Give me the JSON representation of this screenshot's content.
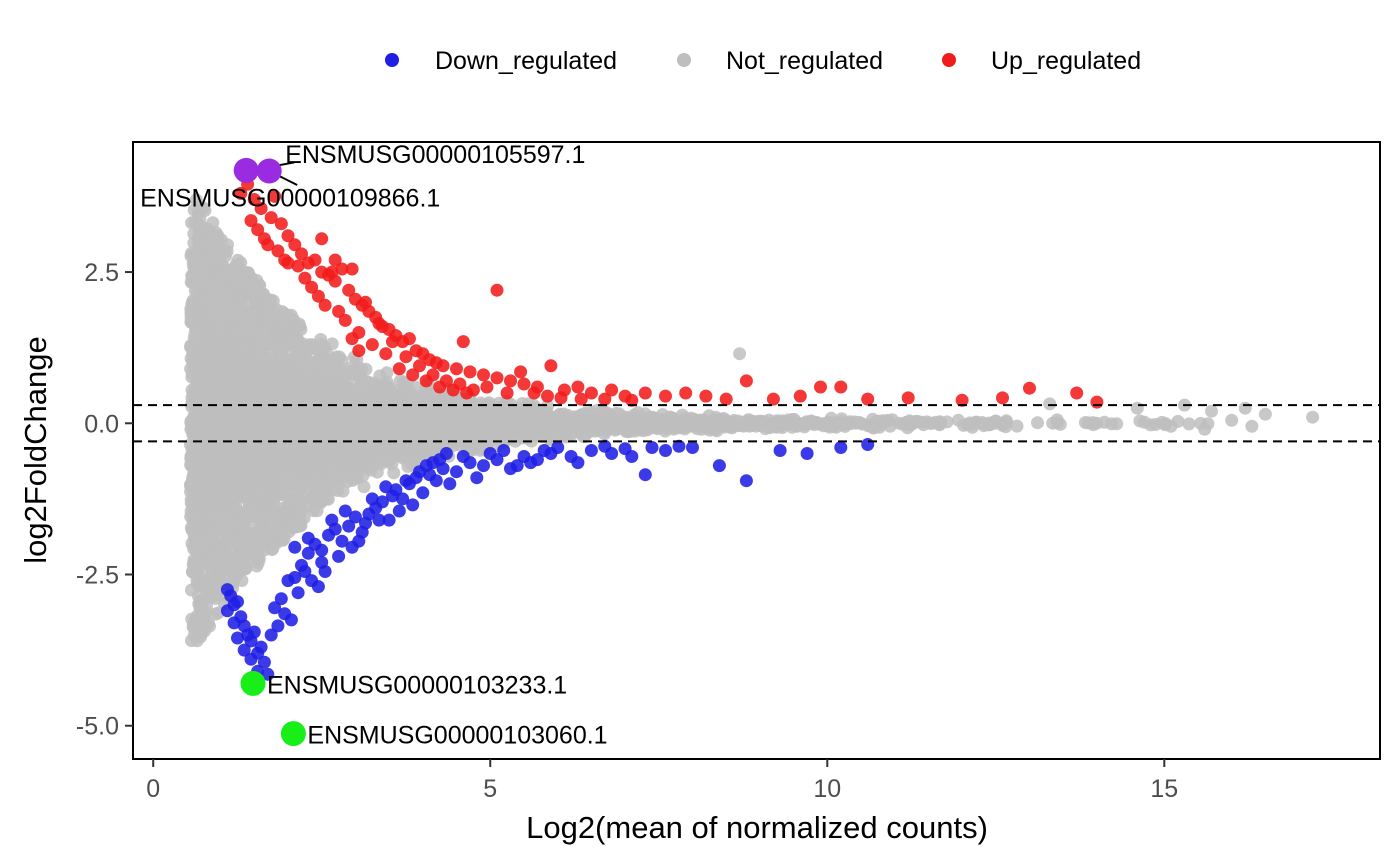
{
  "chart_data": {
    "type": "scatter",
    "title": "",
    "xlabel": "Log2(mean of normalized counts)",
    "ylabel": "log2FoldChange",
    "xlim": [
      -0.3,
      18.2
    ],
    "ylim": [
      -5.55,
      4.65
    ],
    "x_ticks": [
      0,
      5,
      10,
      15
    ],
    "x_tick_labels": [
      "0",
      "5",
      "10",
      "15"
    ],
    "y_ticks": [
      -5.0,
      -2.5,
      0.0,
      2.5
    ],
    "y_tick_labels": [
      "-5.0",
      "-2.5",
      "0.0",
      "2.5"
    ],
    "thresholds": [
      0.3,
      -0.3
    ],
    "grid": false,
    "legend_position": "top",
    "legend": [
      {
        "name": "Down_regulated",
        "color": "#1f1fe6"
      },
      {
        "name": "Not_regulated",
        "color": "#bebebe"
      },
      {
        "name": "Up_regulated",
        "color": "#f21b1b"
      }
    ],
    "series": [
      {
        "name": "Down_regulated",
        "color": "#1f1fe6",
        "points": [
          [
            1.1,
            -3.1
          ],
          [
            1.2,
            -3.3
          ],
          [
            1.25,
            -3.55
          ],
          [
            1.35,
            -3.75
          ],
          [
            1.45,
            -3.9
          ],
          [
            1.55,
            -4.1
          ],
          [
            1.7,
            -4.15
          ],
          [
            1.35,
            -3.35
          ],
          [
            1.45,
            -3.6
          ],
          [
            1.5,
            -3.45
          ],
          [
            1.6,
            -3.7
          ],
          [
            1.75,
            -3.5
          ],
          [
            1.8,
            -3.05
          ],
          [
            1.9,
            -2.9
          ],
          [
            2.0,
            -2.6
          ],
          [
            2.1,
            -2.55
          ],
          [
            2.2,
            -2.35
          ],
          [
            2.3,
            -2.15
          ],
          [
            2.4,
            -2.0
          ],
          [
            2.5,
            -2.1
          ],
          [
            2.6,
            -1.85
          ],
          [
            2.7,
            -1.75
          ],
          [
            2.8,
            -1.95
          ],
          [
            2.9,
            -1.7
          ],
          [
            3.0,
            -1.55
          ],
          [
            3.1,
            -1.8
          ],
          [
            3.2,
            -1.5
          ],
          [
            3.3,
            -1.4
          ],
          [
            3.4,
            -1.3
          ],
          [
            3.5,
            -1.6
          ],
          [
            3.6,
            -1.1
          ],
          [
            3.7,
            -1.25
          ],
          [
            3.8,
            -1.0
          ],
          [
            3.9,
            -0.9
          ],
          [
            4.0,
            -1.15
          ],
          [
            4.1,
            -0.85
          ],
          [
            4.2,
            -0.95
          ],
          [
            4.3,
            -0.75
          ],
          [
            4.5,
            -0.8
          ],
          [
            4.7,
            -0.65
          ],
          [
            4.9,
            -0.7
          ],
          [
            5.1,
            -0.6
          ],
          [
            5.3,
            -0.75
          ],
          [
            5.5,
            -0.55
          ],
          [
            5.7,
            -0.6
          ],
          [
            5.9,
            -0.5
          ],
          [
            6.2,
            -0.55
          ],
          [
            6.5,
            -0.45
          ],
          [
            6.8,
            -0.5
          ],
          [
            7.1,
            -0.55
          ],
          [
            7.4,
            -0.4
          ],
          [
            7.6,
            -0.45
          ],
          [
            8.0,
            -0.4
          ],
          [
            8.4,
            -0.7
          ],
          [
            8.8,
            -0.95
          ],
          [
            9.3,
            -0.45
          ],
          [
            9.7,
            -0.5
          ],
          [
            10.2,
            -0.4
          ],
          [
            10.6,
            -0.35
          ],
          [
            2.1,
            -2.05
          ],
          [
            2.3,
            -1.9
          ],
          [
            2.5,
            -2.3
          ],
          [
            2.65,
            -1.6
          ],
          [
            2.85,
            -1.45
          ],
          [
            3.05,
            -1.95
          ],
          [
            3.25,
            -1.25
          ],
          [
            3.45,
            -1.05
          ],
          [
            3.65,
            -1.45
          ],
          [
            3.85,
            -1.35
          ],
          [
            4.05,
            -0.7
          ],
          [
            4.25,
            -0.6
          ],
          [
            4.4,
            -1.0
          ],
          [
            4.6,
            -0.55
          ],
          [
            4.8,
            -0.9
          ],
          [
            5.0,
            -0.5
          ],
          [
            5.2,
            -0.45
          ],
          [
            5.4,
            -0.7
          ],
          [
            5.6,
            -0.65
          ],
          [
            5.8,
            -0.45
          ],
          [
            6.0,
            -0.4
          ],
          [
            6.3,
            -0.65
          ],
          [
            6.7,
            -0.38
          ],
          [
            7.0,
            -0.42
          ],
          [
            7.3,
            -0.85
          ],
          [
            7.8,
            -0.38
          ],
          [
            1.95,
            -3.15
          ],
          [
            2.05,
            -3.25
          ],
          [
            1.85,
            -3.35
          ],
          [
            2.15,
            -2.8
          ],
          [
            2.25,
            -2.45
          ],
          [
            2.45,
            -2.7
          ],
          [
            2.55,
            -2.45
          ],
          [
            2.35,
            -2.6
          ],
          [
            2.75,
            -2.2
          ],
          [
            2.95,
            -2.05
          ],
          [
            3.15,
            -1.65
          ],
          [
            3.35,
            -1.6
          ],
          [
            3.55,
            -1.2
          ],
          [
            3.75,
            -0.95
          ],
          [
            3.95,
            -0.8
          ],
          [
            4.15,
            -0.65
          ],
          [
            4.35,
            -0.5
          ],
          [
            1.65,
            -3.95
          ],
          [
            1.55,
            -3.8
          ],
          [
            1.4,
            -3.5
          ],
          [
            1.3,
            -3.2
          ],
          [
            1.2,
            -3.0
          ],
          [
            1.15,
            -2.85
          ],
          [
            1.25,
            -2.95
          ],
          [
            1.1,
            -2.75
          ]
        ]
      },
      {
        "name": "Up_regulated",
        "color": "#f21b1b",
        "points": [
          [
            1.3,
            3.8
          ],
          [
            1.4,
            3.95
          ],
          [
            1.5,
            3.7
          ],
          [
            1.6,
            3.55
          ],
          [
            1.75,
            3.4
          ],
          [
            1.8,
            3.75
          ],
          [
            1.9,
            3.3
          ],
          [
            2.0,
            3.1
          ],
          [
            2.1,
            2.95
          ],
          [
            2.2,
            2.8
          ],
          [
            2.3,
            2.65
          ],
          [
            2.4,
            2.7
          ],
          [
            2.5,
            2.5
          ],
          [
            2.6,
            2.45
          ],
          [
            2.7,
            2.35
          ],
          [
            2.8,
            2.55
          ],
          [
            2.9,
            2.2
          ],
          [
            3.0,
            2.05
          ],
          [
            3.1,
            1.95
          ],
          [
            3.2,
            1.85
          ],
          [
            3.3,
            1.75
          ],
          [
            3.4,
            1.6
          ],
          [
            3.5,
            1.55
          ],
          [
            3.6,
            1.45
          ],
          [
            3.7,
            1.35
          ],
          [
            3.8,
            1.4
          ],
          [
            3.9,
            1.2
          ],
          [
            4.0,
            1.15
          ],
          [
            4.1,
            1.05
          ],
          [
            4.2,
            1.0
          ],
          [
            4.3,
            0.95
          ],
          [
            4.5,
            0.9
          ],
          [
            4.6,
            1.35
          ],
          [
            4.7,
            0.85
          ],
          [
            4.9,
            0.8
          ],
          [
            5.1,
            2.2
          ],
          [
            5.1,
            0.75
          ],
          [
            5.3,
            0.7
          ],
          [
            5.5,
            0.65
          ],
          [
            5.7,
            0.6
          ],
          [
            5.9,
            0.95
          ],
          [
            6.1,
            0.55
          ],
          [
            6.3,
            0.6
          ],
          [
            6.5,
            0.5
          ],
          [
            6.8,
            0.55
          ],
          [
            7.0,
            0.45
          ],
          [
            7.3,
            0.5
          ],
          [
            7.6,
            0.45
          ],
          [
            7.9,
            0.5
          ],
          [
            8.2,
            0.45
          ],
          [
            8.5,
            0.4
          ],
          [
            8.8,
            0.7
          ],
          [
            9.2,
            0.4
          ],
          [
            9.6,
            0.45
          ],
          [
            9.9,
            0.6
          ],
          [
            10.2,
            0.6
          ],
          [
            10.6,
            0.4
          ],
          [
            11.2,
            0.42
          ],
          [
            12.0,
            0.38
          ],
          [
            12.6,
            0.42
          ],
          [
            13.0,
            0.58
          ],
          [
            13.7,
            0.5
          ],
          [
            14.0,
            0.35
          ],
          [
            2.5,
            3.05
          ],
          [
            2.7,
            2.7
          ],
          [
            2.65,
            2.5
          ],
          [
            2.95,
            2.55
          ],
          [
            3.15,
            2.0
          ],
          [
            3.35,
            1.65
          ],
          [
            3.55,
            1.35
          ],
          [
            3.75,
            1.1
          ],
          [
            3.95,
            0.95
          ],
          [
            4.15,
            0.8
          ],
          [
            4.35,
            0.7
          ],
          [
            4.55,
            0.65
          ],
          [
            4.75,
            0.55
          ],
          [
            4.95,
            0.6
          ],
          [
            5.25,
            0.5
          ],
          [
            5.45,
            0.85
          ],
          [
            5.65,
            0.5
          ],
          [
            5.85,
            0.45
          ],
          [
            6.05,
            0.42
          ],
          [
            6.35,
            0.4
          ],
          [
            6.7,
            0.4
          ],
          [
            7.1,
            0.38
          ],
          [
            2.0,
            2.65
          ],
          [
            2.15,
            2.6
          ],
          [
            2.25,
            2.4
          ],
          [
            2.35,
            2.25
          ],
          [
            2.45,
            2.1
          ],
          [
            2.55,
            1.95
          ],
          [
            2.75,
            1.85
          ],
          [
            2.85,
            1.7
          ],
          [
            3.05,
            1.5
          ],
          [
            3.25,
            1.3
          ],
          [
            3.45,
            1.15
          ],
          [
            3.65,
            0.9
          ],
          [
            3.85,
            0.8
          ],
          [
            4.05,
            0.7
          ],
          [
            4.25,
            0.6
          ],
          [
            1.7,
            2.95
          ],
          [
            1.85,
            2.85
          ],
          [
            1.95,
            2.7
          ],
          [
            1.55,
            3.2
          ],
          [
            1.45,
            3.35
          ],
          [
            1.65,
            3.05
          ],
          [
            2.95,
            1.4
          ],
          [
            3.05,
            1.2
          ],
          [
            4.45,
            0.55
          ],
          [
            4.65,
            0.5
          ]
        ]
      }
    ],
    "annotations": [
      {
        "label": "ENSMUSG00000105597.1",
        "x": 1.72,
        "y": 4.17,
        "color": "#9a2be0"
      },
      {
        "label": "ENSMUSG00000109866.1",
        "x": 1.38,
        "y": 4.18,
        "color": "#9a2be0"
      },
      {
        "label": "ENSMUSG00000103233.1",
        "x": 1.48,
        "y": -4.3,
        "color": "#18ee18"
      },
      {
        "label": "ENSMUSG00000103060.1",
        "x": 2.08,
        "y": -5.13,
        "color": "#18ee18"
      }
    ]
  }
}
